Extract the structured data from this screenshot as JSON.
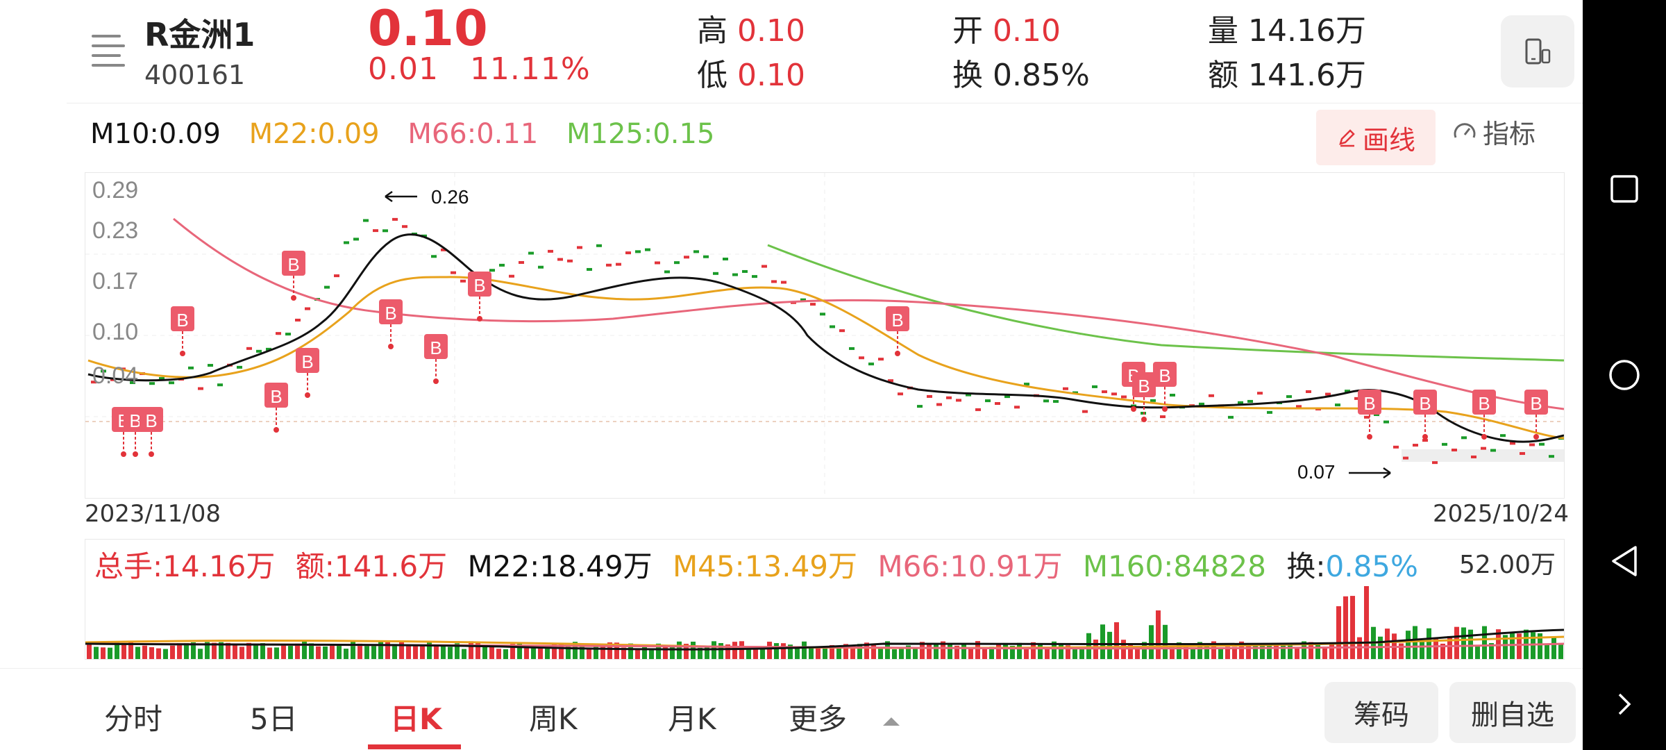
{
  "header": {
    "name": "R金洲1",
    "code": "400161",
    "price": "0.10",
    "change": "0.01",
    "change_pct": "11.11%",
    "high_label": "高",
    "high": "0.10",
    "low_label": "低",
    "low": "0.10",
    "open_label": "开",
    "open": "0.10",
    "turnover_label": "换",
    "turnover": "0.85%",
    "volume_label": "量",
    "volume": "14.16万",
    "amount_label": "额",
    "amount": "141.6万"
  },
  "ma": {
    "m10": "M10:0.09",
    "m22": "M22:0.09",
    "m66": "M66:0.11",
    "m125": "M125:0.15"
  },
  "tools": {
    "draw": "画线",
    "indicator": "指标"
  },
  "kchart": {
    "y_ticks": [
      "0.29",
      "0.23",
      "0.17",
      "0.10",
      "0.04"
    ],
    "date_start": "2023/11/08",
    "date_end": "2025/10/24",
    "max_label": "0.26",
    "min_label": "0.07",
    "marker": "B"
  },
  "volume_panel": {
    "total": "总手:14.16万",
    "amount": "额:141.6万",
    "m22": "M22:18.49万",
    "m45": "M45:13.49万",
    "m66": "M66:10.91万",
    "m160": "M160:84828",
    "turnover_label": "换:",
    "turnover": "0.85%",
    "max": "52.00万"
  },
  "tabs": [
    {
      "label": "分时"
    },
    {
      "label": "5日"
    },
    {
      "label": "日K"
    },
    {
      "label": "周K"
    },
    {
      "label": "月K"
    },
    {
      "label": "更多"
    }
  ],
  "buttons": {
    "chips": "筹码",
    "remove": "删自选"
  },
  "colors": {
    "up": "#e2333a",
    "down": "#1a9b29",
    "m10": "#111111",
    "m22": "#e8a21c",
    "m66": "#e8667a",
    "m125": "#6cc24a",
    "turnover": "#3ea8e0"
  }
}
